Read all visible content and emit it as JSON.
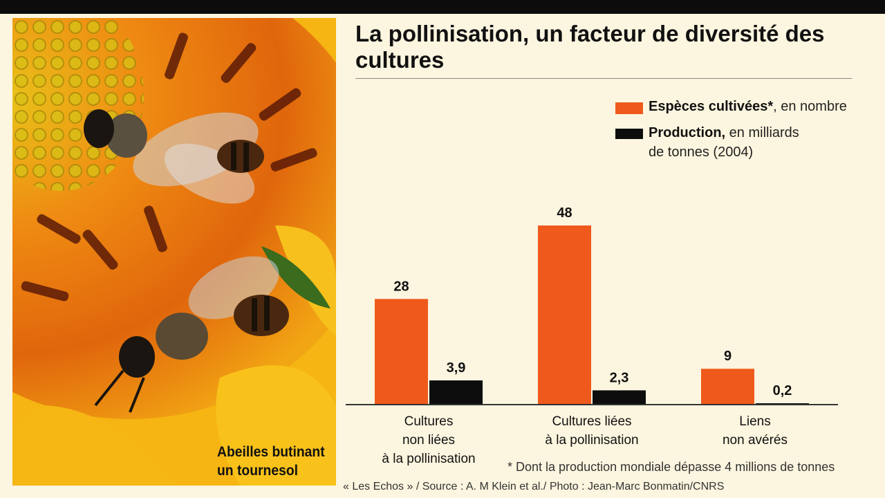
{
  "title": "La pollinisation, un facteur de diversité des cultures",
  "photo": {
    "caption_line1": "Abeilles butinant",
    "caption_line2": "un tournesol"
  },
  "legend": {
    "species_bold": "Espèces cultivées*",
    "species_rest": ", en nombre",
    "production_bold": "Production,",
    "production_rest": " en milliards",
    "production_line2": "de tonnes (2004)"
  },
  "chart_data": {
    "type": "bar",
    "categories": [
      [
        "Cultures",
        "non liées",
        "à la pollinisation"
      ],
      [
        "Cultures liées",
        "à la pollinisation"
      ],
      [
        "Liens",
        "non avérés"
      ]
    ],
    "series": [
      {
        "name": "Espèces cultivées*, en nombre",
        "values": [
          28,
          48,
          9
        ],
        "labels": [
          "28",
          "48",
          "9"
        ],
        "color": "#ef5a1c"
      },
      {
        "name": "Production, en milliards de tonnes (2004)",
        "values": [
          3.9,
          2.3,
          0.2
        ],
        "labels": [
          "3,9",
          "2,3",
          "0,2"
        ],
        "color": "#0d0d0d"
      }
    ],
    "title": "La pollinisation, un facteur de diversité des cultures",
    "xlabel": "",
    "ylabel": "",
    "grid": false,
    "legend_position": "top-right"
  },
  "footnote": "* Dont la production mondiale dépasse 4 millions de tonnes",
  "source": "« Les Echos » / Source : A. M Klein et al./ Photo : Jean-Marc Bonmatin/CNRS",
  "colors": {
    "accent": "#ef5a1c",
    "dark": "#0d0d0d",
    "background": "#fcf5df"
  }
}
